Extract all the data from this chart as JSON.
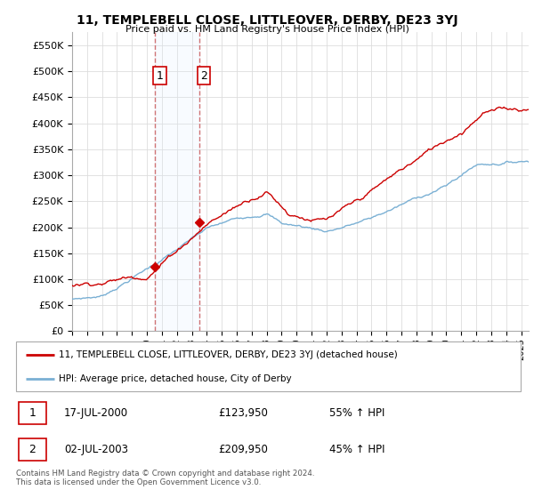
{
  "title": "11, TEMPLEBELL CLOSE, LITTLEOVER, DERBY, DE23 3YJ",
  "subtitle": "Price paid vs. HM Land Registry's House Price Index (HPI)",
  "ylabel_ticks": [
    0,
    50000,
    100000,
    150000,
    200000,
    250000,
    300000,
    350000,
    400000,
    450000,
    500000,
    550000
  ],
  "ylim": [
    0,
    575000
  ],
  "xlim_start": 1995.0,
  "xlim_end": 2025.5,
  "purchase1_year": 2000.54,
  "purchase1_price": 123950,
  "purchase2_year": 2003.5,
  "purchase2_price": 209950,
  "line_color_red": "#cc0000",
  "line_color_blue": "#7ab0d4",
  "shade_color": "#ddeeff",
  "dashed_color": "#cc6666",
  "legend_line1": "11, TEMPLEBELL CLOSE, LITTLEOVER, DERBY, DE23 3YJ (detached house)",
  "legend_line2": "HPI: Average price, detached house, City of Derby",
  "table_row1": [
    "1",
    "17-JUL-2000",
    "£123,950",
    "55% ↑ HPI"
  ],
  "table_row2": [
    "2",
    "02-JUL-2003",
    "£209,950",
    "45% ↑ HPI"
  ],
  "footnote": "Contains HM Land Registry data © Crown copyright and database right 2024.\nThis data is licensed under the Open Government Licence v3.0.",
  "bg_color": "#ffffff",
  "grid_color": "#dddddd"
}
